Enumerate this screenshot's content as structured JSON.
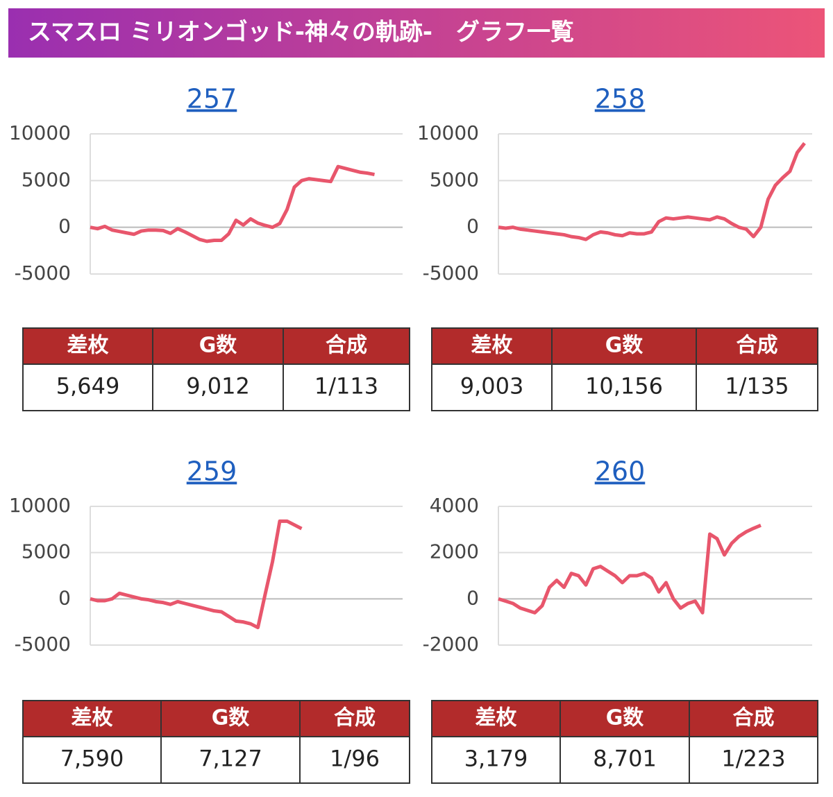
{
  "header": {
    "title": "スマスロ ミリオンゴッド-神々の軌跡-　グラフ一覧"
  },
  "chart_data": [
    {
      "type": "line",
      "title": "257",
      "color": "#e8566c",
      "grid": true,
      "ylim": [
        -5000,
        10000
      ],
      "yticks": [
        -5000,
        0,
        5000,
        10000
      ],
      "values": [
        0,
        -150,
        100,
        -300,
        -450,
        -600,
        -750,
        -400,
        -300,
        -300,
        -350,
        -650,
        -150,
        -500,
        -900,
        -1300,
        -1500,
        -1400,
        -1400,
        -700,
        750,
        250,
        900,
        450,
        200,
        0,
        400,
        1900,
        4300,
        5000,
        5200,
        5100,
        5000,
        4900,
        6500,
        6300,
        6100,
        5900,
        5800,
        5649
      ]
    },
    {
      "type": "line",
      "title": "258",
      "color": "#e8566c",
      "grid": true,
      "ylim": [
        -5000,
        10000
      ],
      "yticks": [
        -5000,
        0,
        5000,
        10000
      ],
      "values": [
        0,
        -100,
        0,
        -200,
        -300,
        -400,
        -500,
        -600,
        -700,
        -800,
        -1000,
        -1100,
        -1300,
        -800,
        -500,
        -600,
        -800,
        -900,
        -600,
        -700,
        -700,
        -500,
        600,
        1000,
        900,
        1000,
        1100,
        1000,
        900,
        800,
        1100,
        900,
        400,
        0,
        -200,
        -1000,
        0,
        3000,
        4500,
        5300,
        6000,
        8000,
        9003
      ]
    },
    {
      "type": "line",
      "title": "259",
      "color": "#e8566c",
      "grid": true,
      "ylim": [
        -5000,
        10000
      ],
      "yticks": [
        -5000,
        0,
        5000,
        10000
      ],
      "values": [
        0,
        -200,
        -200,
        0,
        600,
        400,
        200,
        0,
        -100,
        -300,
        -400,
        -600,
        -300,
        -500,
        -700,
        -900,
        -1100,
        -1300,
        -1400,
        -1900,
        -2400,
        -2500,
        -2700,
        -3100,
        500,
        4000,
        8400,
        8400,
        8000,
        7590
      ]
    },
    {
      "type": "line",
      "title": "260",
      "color": "#e8566c",
      "grid": true,
      "ylim": [
        -2000,
        4000
      ],
      "yticks": [
        -2000,
        0,
        2000,
        4000
      ],
      "values": [
        0,
        -100,
        -200,
        -400,
        -500,
        -600,
        -300,
        500,
        800,
        500,
        1100,
        1000,
        600,
        1300,
        1400,
        1200,
        1000,
        700,
        1000,
        1000,
        1100,
        900,
        300,
        700,
        0,
        -400,
        -200,
        -100,
        -600,
        2800,
        2600,
        1900,
        2400,
        2700,
        2900,
        3050,
        3179
      ]
    }
  ],
  "tables": [
    {
      "header": [
        "差枚",
        "G数",
        "合成"
      ],
      "row": [
        "5,649",
        "9,012",
        "1/113"
      ]
    },
    {
      "header": [
        "差枚",
        "G数",
        "合成"
      ],
      "row": [
        "9,003",
        "10,156",
        "1/135"
      ]
    },
    {
      "header": [
        "差枚",
        "G数",
        "合成"
      ],
      "row": [
        "7,590",
        "7,127",
        "1/96"
      ]
    },
    {
      "header": [
        "差枚",
        "G数",
        "合成"
      ],
      "row": [
        "3,179",
        "8,701",
        "1/223"
      ]
    }
  ]
}
